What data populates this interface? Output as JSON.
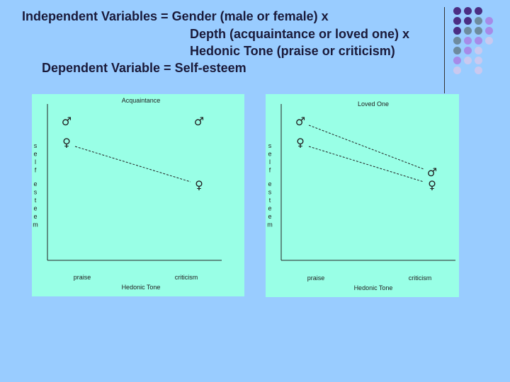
{
  "header": {
    "line1": "Independent Variables = Gender (male or female) x",
    "line2": "Depth (acquaintance or loved one) x",
    "line3": "Hedonic Tone (praise or criticism)",
    "line4": "Dependent Variable = Self-esteem"
  },
  "decoration": {
    "dot_colors": [
      "#4B2E83",
      "#6E8B9E",
      "#A68BE8",
      "#C9C9F0"
    ]
  },
  "chart_data": [
    {
      "type": "line",
      "title": "Acquaintance",
      "xlabel": "Hedonic Tone",
      "ylabel": "self esteem",
      "categories": [
        "praise",
        "criticism"
      ],
      "grid": false,
      "series": [
        {
          "marker": "male",
          "symbol": "♂",
          "values": [
            3.0,
            3.0
          ]
        },
        {
          "marker": "female",
          "symbol": "♀",
          "values": [
            2.0,
            0.0
          ]
        }
      ]
    },
    {
      "type": "line",
      "title": "Loved One",
      "xlabel": "Hedonic Tone",
      "ylabel": "self esteem",
      "categories": [
        "praise",
        "criticism"
      ],
      "grid": false,
      "series": [
        {
          "marker": "male",
          "symbol": "♂",
          "values": [
            3.0,
            0.6
          ]
        },
        {
          "marker": "female",
          "symbol": "♀",
          "values": [
            2.0,
            0.0
          ]
        }
      ]
    }
  ]
}
